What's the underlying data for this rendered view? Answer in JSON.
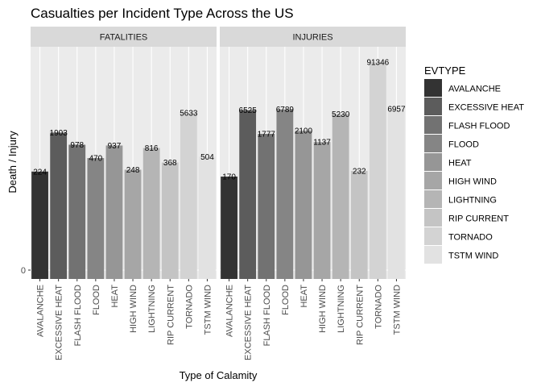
{
  "chart_data": {
    "type": "bar",
    "title": "Casualties per Incident Type Across the US",
    "xlabel": "Type of Calamity",
    "ylabel": "Death / Injury",
    "y_scale": "log",
    "y_ticks": [
      "0"
    ],
    "grid": true,
    "legend_position": "right",
    "legend_title": "EVTYPE",
    "categories": [
      "AVALANCHE",
      "EXCESSIVE HEAT",
      "FLASH FLOOD",
      "FLOOD",
      "HEAT",
      "HIGH WIND",
      "LIGHTNING",
      "RIP CURRENT",
      "TORNADO",
      "TSTM WIND"
    ],
    "colors": [
      "#333333",
      "#5c5c5c",
      "#727272",
      "#858585",
      "#969696",
      "#a6a6a6",
      "#b5b5b5",
      "#c4c4c4",
      "#d3d3d3",
      "#e2e2e2"
    ],
    "panels": [
      {
        "name": "FATALITIES",
        "values": [
          224,
          1903,
          978,
          470,
          937,
          248,
          816,
          368,
          5633,
          504
        ]
      },
      {
        "name": "INJURIES",
        "values": [
          170,
          6525,
          1777,
          6789,
          2100,
          1137,
          5230,
          232,
          91346,
          6957
        ]
      }
    ]
  }
}
